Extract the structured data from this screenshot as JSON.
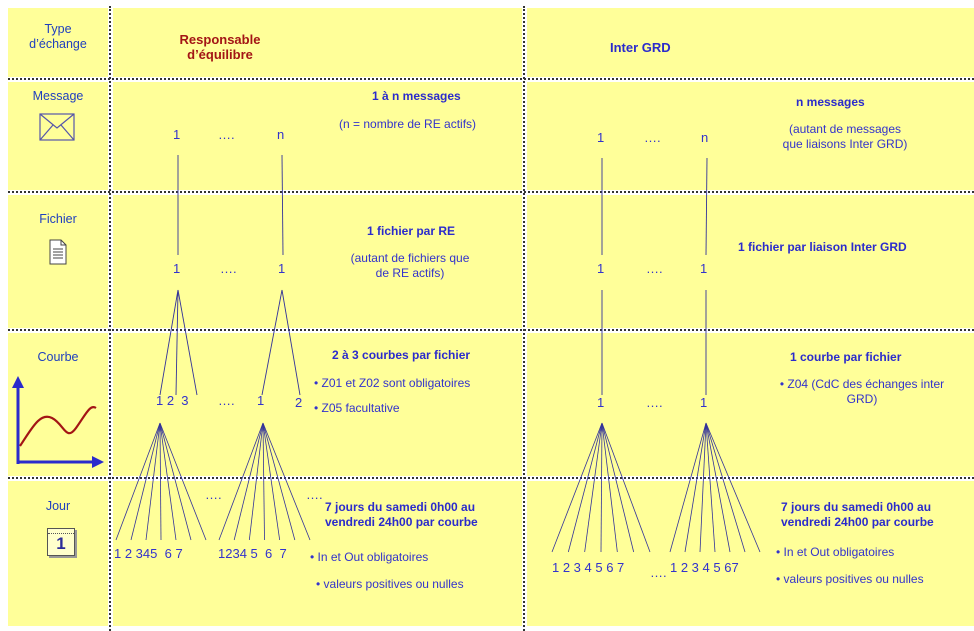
{
  "header": {
    "type_label": "Type\nd’échange",
    "re_title": "Responsable\nd’équilibre",
    "grd_title": "Inter GRD"
  },
  "rows": {
    "message": {
      "label": "Message",
      "icon": "envelope-icon",
      "re_bold": "1 à n messages",
      "re_note": "(n = nombre de RE actifs)",
      "grd_bold": "n messages",
      "grd_note": "(autant de messages\nque liaisons Inter GRD)",
      "re_nums": [
        "1",
        "….",
        "n"
      ],
      "grd_nums": [
        "1",
        "….",
        "n"
      ]
    },
    "fichier": {
      "label": "Fichier",
      "icon": "document-icon",
      "re_bold": "1 fichier par RE",
      "re_note": "(autant de fichiers que\nde RE actifs)",
      "grd_bold": "1 fichier par liaison Inter GRD",
      "re_nums": [
        "1",
        "….",
        "1"
      ],
      "grd_nums": [
        "1",
        "….",
        "1"
      ]
    },
    "courbe": {
      "label": "Courbe",
      "icon": "curve-chart-icon",
      "re_bold": "2 à 3 courbes par fichier",
      "re_bullets": [
        "• Z01 et Z02 sont obligatoires",
        "• Z05 facultative"
      ],
      "grd_bold": "1 courbe par fichier",
      "grd_bullet": "• Z04 (CdC des échanges inter\nGRD)",
      "re_nums_a": "1 2  3",
      "re_dots": "….",
      "re_nums_b": "1",
      "re_nums_c": "2",
      "grd_nums": [
        "1",
        "….",
        "1"
      ]
    },
    "jour": {
      "label": "Jour",
      "icon": "calendar-icon",
      "icon_number": "1",
      "re_bold": "7 jours du samedi 0h00 au\nvendredi 24h00 par courbe",
      "re_bullets": [
        "• In et Out obligatoires",
        "• valeurs positives ou nulles"
      ],
      "grd_bold": "7 jours du samedi 0h00 au\nvendredi 24h00 par courbe",
      "grd_bullets": [
        "• In et Out obligatoires",
        "• valeurs positives ou nulles"
      ],
      "re_days_a": "1 2 345  6 7",
      "re_days_b": "1234 5  6  7",
      "re_dots_top_a": "….",
      "re_dots_top_b": "….",
      "grd_days_a": "1 2 3 4 5 6 7",
      "grd_dots": "….",
      "grd_days_b": "1 2 3 4 5 67"
    }
  },
  "colors": {
    "cell_bg": "#ffff99",
    "text_blue": "#3333cc",
    "title_red": "#a31515",
    "curve_red": "#a31515",
    "axis_blue": "#2a2acc"
  }
}
